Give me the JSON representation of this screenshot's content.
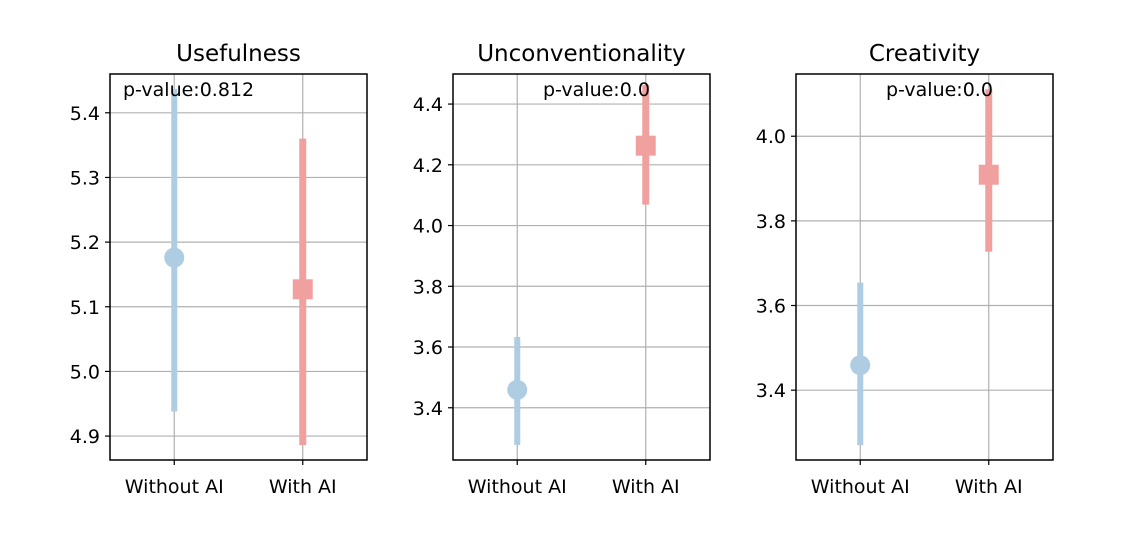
{
  "chart_data": [
    {
      "type": "errorbar",
      "title": "Usefulness",
      "annotation": "p-value:0.812",
      "annotation_placement": "top-left",
      "categories": [
        "Without AI",
        "With AI"
      ],
      "ylim": [
        4.863,
        5.46
      ],
      "yticks": [
        4.9,
        5.0,
        5.1,
        5.2,
        5.3,
        5.4
      ],
      "ytick_labels": [
        "4.9",
        "5.0",
        "5.1",
        "5.2",
        "5.3",
        "5.4"
      ],
      "grid": true,
      "points": [
        {
          "category": "Without AI",
          "mean": 5.176,
          "low": 4.938,
          "high": 5.437,
          "marker": "circle",
          "color": "#aecde3"
        },
        {
          "category": "With AI",
          "mean": 5.127,
          "low": 4.886,
          "high": 5.36,
          "marker": "square",
          "color": "#f0a19f"
        }
      ]
    },
    {
      "type": "errorbar",
      "title": "Unconventionality",
      "annotation": "p-value:0.0",
      "annotation_placement": "top-right",
      "categories": [
        "Without AI",
        "With AI"
      ],
      "ylim": [
        3.228,
        4.499
      ],
      "yticks": [
        3.4,
        3.6,
        3.8,
        4.0,
        4.2,
        4.4
      ],
      "ytick_labels": [
        "3.4",
        "3.6",
        "3.8",
        "4.0",
        "4.2",
        "4.4"
      ],
      "grid": true,
      "points": [
        {
          "category": "Without AI",
          "mean": 3.459,
          "low": 3.278,
          "high": 3.633,
          "marker": "circle",
          "color": "#aecde3"
        },
        {
          "category": "With AI",
          "mean": 4.263,
          "low": 4.069,
          "high": 4.463,
          "marker": "square",
          "color": "#f0a19f"
        }
      ]
    },
    {
      "type": "errorbar",
      "title": "Creativity",
      "annotation": "p-value:0.0",
      "annotation_placement": "top-right",
      "categories": [
        "Without AI",
        "With AI"
      ],
      "ylim": [
        3.235,
        4.147
      ],
      "yticks": [
        3.4,
        3.6,
        3.8,
        4.0
      ],
      "ytick_labels": [
        "3.4",
        "3.6",
        "3.8",
        "4.0"
      ],
      "grid": true,
      "points": [
        {
          "category": "Without AI",
          "mean": 3.459,
          "low": 3.27,
          "high": 3.654,
          "marker": "circle",
          "color": "#aecde3"
        },
        {
          "category": "With AI",
          "mean": 3.909,
          "low": 3.727,
          "high": 4.111,
          "marker": "square",
          "color": "#f0a19f"
        }
      ]
    }
  ]
}
